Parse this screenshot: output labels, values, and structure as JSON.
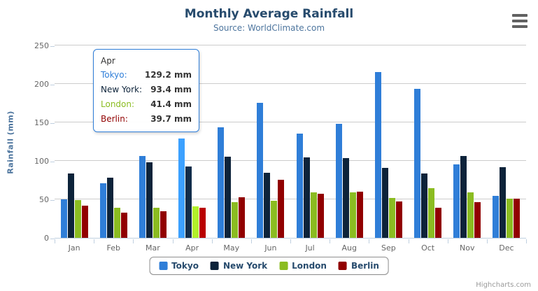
{
  "header": {
    "title": "Monthly Average Rainfall",
    "subtitle": "Source: WorldClimate.com"
  },
  "yaxis_title": "Rainfall (mm)",
  "credits_label": "Highcharts.com",
  "icons": {
    "export_menu": "hamburger-icon"
  },
  "colors": {
    "title_text": "#274b6d",
    "subtitle_text": "#4d759e",
    "axis_label_text": "#666666",
    "gridline": "#cccccc",
    "axis_line": "#c0d0e0",
    "legend_border": "#909090",
    "tooltip_border": "#2f7ed8"
  },
  "chart_data": {
    "type": "bar",
    "title": "Monthly Average Rainfall",
    "subtitle": "Source: WorldClimate.com",
    "xlabel": "",
    "ylabel": "Rainfall (mm)",
    "ylim": [
      0,
      250
    ],
    "yticks": [
      0,
      50,
      100,
      150,
      200,
      250
    ],
    "grid": true,
    "legend_position": "bottom",
    "categories": [
      "Jan",
      "Feb",
      "Mar",
      "Apr",
      "May",
      "Jun",
      "Jul",
      "Aug",
      "Sep",
      "Oct",
      "Nov",
      "Dec"
    ],
    "series": [
      {
        "name": "Tokyo",
        "color": "#2f7ed8",
        "values": [
          49.9,
          71.5,
          106.4,
          129.2,
          144.0,
          176.0,
          135.6,
          148.5,
          216.4,
          194.1,
          95.6,
          54.4
        ]
      },
      {
        "name": "New York",
        "color": "#0d233a",
        "values": [
          83.6,
          78.8,
          98.5,
          93.4,
          106.0,
          84.5,
          105.0,
          104.3,
          91.2,
          83.5,
          106.6,
          92.3
        ]
      },
      {
        "name": "London",
        "color": "#8bbc21",
        "values": [
          48.9,
          38.8,
          39.3,
          41.4,
          47.0,
          48.3,
          59.0,
          59.6,
          52.4,
          65.2,
          59.3,
          51.2
        ]
      },
      {
        "name": "Berlin",
        "color": "#910000",
        "values": [
          42.4,
          33.2,
          34.5,
          39.7,
          52.6,
          75.5,
          57.4,
          60.4,
          47.6,
          39.1,
          46.8,
          51.1
        ]
      }
    ]
  },
  "tooltip": {
    "hovered_category": "Apr",
    "header": "Apr",
    "unit": "mm",
    "rows": [
      {
        "name": "Tokyo",
        "value": "129.2 mm",
        "color": "#2f7ed8"
      },
      {
        "name": "New York",
        "value": "93.4 mm",
        "color": "#0d233a"
      },
      {
        "name": "London",
        "value": "41.4 mm",
        "color": "#8bbc21"
      },
      {
        "name": "Berlin",
        "value": "39.7 mm",
        "color": "#910000"
      }
    ]
  }
}
